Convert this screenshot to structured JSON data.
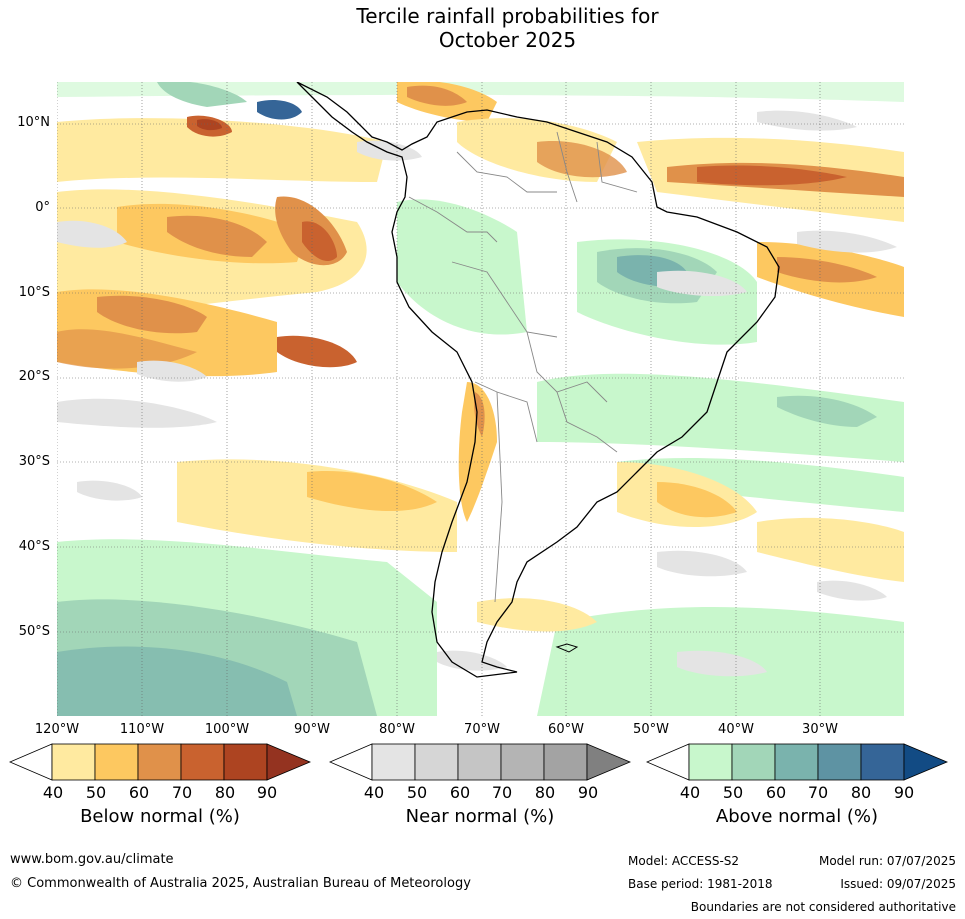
{
  "title": {
    "line1": "Tercile rainfall probabilities for",
    "line2": "October 2025"
  },
  "map": {
    "lat_labels": [
      "10°N",
      "0°",
      "10°S",
      "20°S",
      "30°S",
      "40°S",
      "50°S"
    ],
    "lon_labels": [
      "120°W",
      "110°W",
      "100°W",
      "90°W",
      "80°W",
      "70°W",
      "60°W",
      "50°W",
      "40°W",
      "30°W"
    ]
  },
  "colorbars": [
    {
      "title": "Below normal (%)",
      "ticks": [
        "40",
        "50",
        "60",
        "70",
        "80",
        "90"
      ],
      "colors": [
        "#ffffff",
        "#ffeaa0",
        "#fdc860",
        "#e0914a",
        "#c9622f",
        "#ad4421",
        "#943320"
      ]
    },
    {
      "title": "Near normal (%)",
      "ticks": [
        "40",
        "50",
        "60",
        "70",
        "80",
        "90"
      ],
      "colors": [
        "#ffffff",
        "#e4e4e4",
        "#d6d6d6",
        "#c5c5c5",
        "#b4b4b4",
        "#a3a3a3",
        "#808080"
      ]
    },
    {
      "title": "Above normal (%)",
      "ticks": [
        "40",
        "50",
        "60",
        "70",
        "80",
        "90"
      ],
      "colors": [
        "#ffffff",
        "#c8f7cc",
        "#a2d6b8",
        "#7ab3ad",
        "#5e93a3",
        "#356597",
        "#124b84"
      ]
    }
  ],
  "footer": {
    "website": "www.bom.gov.au/climate",
    "copyright": "© Commonwealth of Australia 2025, Australian Bureau of Meteorology",
    "model": "Model: ACCESS-S2",
    "base_period": "Base period: 1981-2018",
    "model_run": "Model run: 07/07/2025",
    "issued": "Issued: 09/07/2025",
    "disclaimer": "Boundaries are not considered authoritative"
  }
}
